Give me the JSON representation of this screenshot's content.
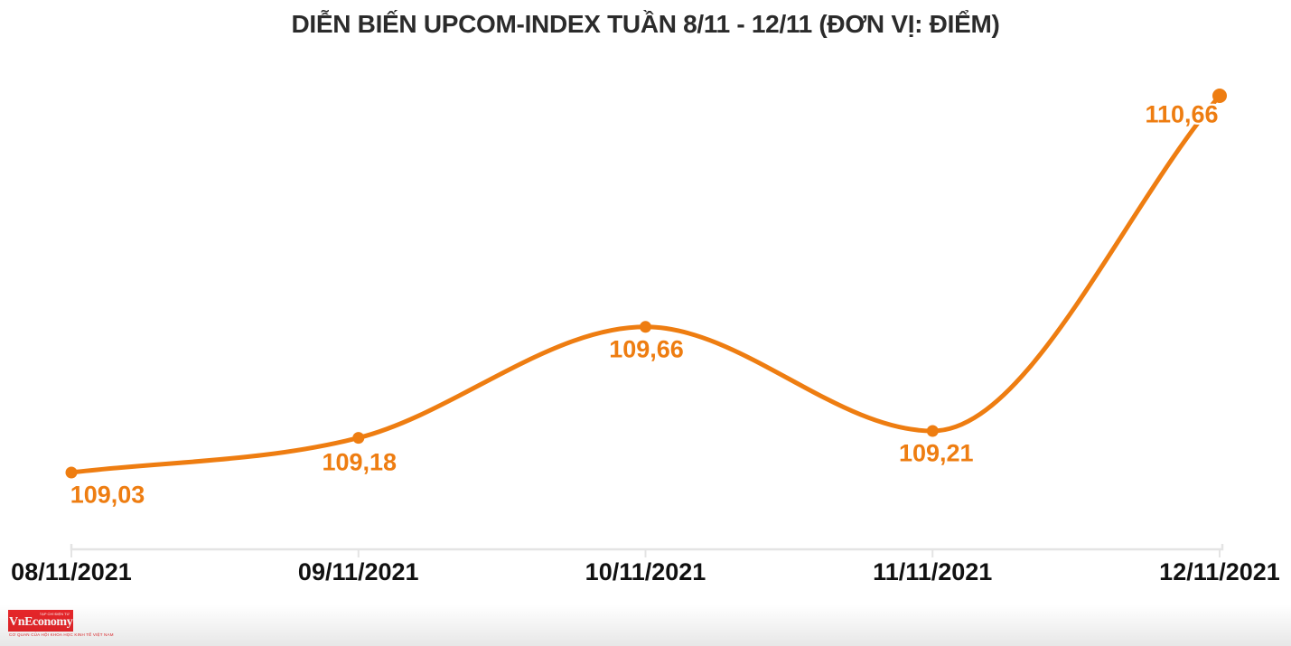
{
  "header": {
    "title": "DIỄN BIẾN UPCOM-INDEX TUẦN 8/11 - 12/11 (ĐƠN VỊ: ĐIỂM)"
  },
  "chart_data": {
    "type": "line",
    "title": "DIỄN BIẾN UPCOM-INDEX TUẦN 8/11 - 12/11 (ĐƠN VỊ: ĐIỂM)",
    "categories": [
      "08/11/2021",
      "09/11/2021",
      "10/11/2021",
      "11/11/2021",
      "12/11/2021"
    ],
    "values": [
      109.03,
      109.18,
      109.66,
      109.21,
      110.66
    ],
    "point_labels": [
      "109,03",
      "109,18",
      "109,66",
      "109,21",
      "110,66"
    ],
    "xlabel": "",
    "ylabel": "Điểm",
    "ylim": [
      108.8,
      110.9
    ],
    "grid": false,
    "legend": false,
    "smooth": true,
    "marker": "circle",
    "line_color": "#ee7d11"
  },
  "colors": {
    "line": "#ee7d11",
    "value_label": "#ee7d11",
    "axis_line": "#e4e4e4",
    "axis_label": "#111111",
    "title": "#2b2b2b",
    "background": "#ffffff",
    "logo_red": "#e8262a"
  },
  "footer": {
    "logo": {
      "name": "VnEconomy",
      "tagline_top": "TẠP CHÍ ĐIỆN TỬ",
      "tagline_bottom": "CƠ QUAN CỦA HỘI KHOA HỌC KINH TẾ VIỆT NAM"
    }
  }
}
